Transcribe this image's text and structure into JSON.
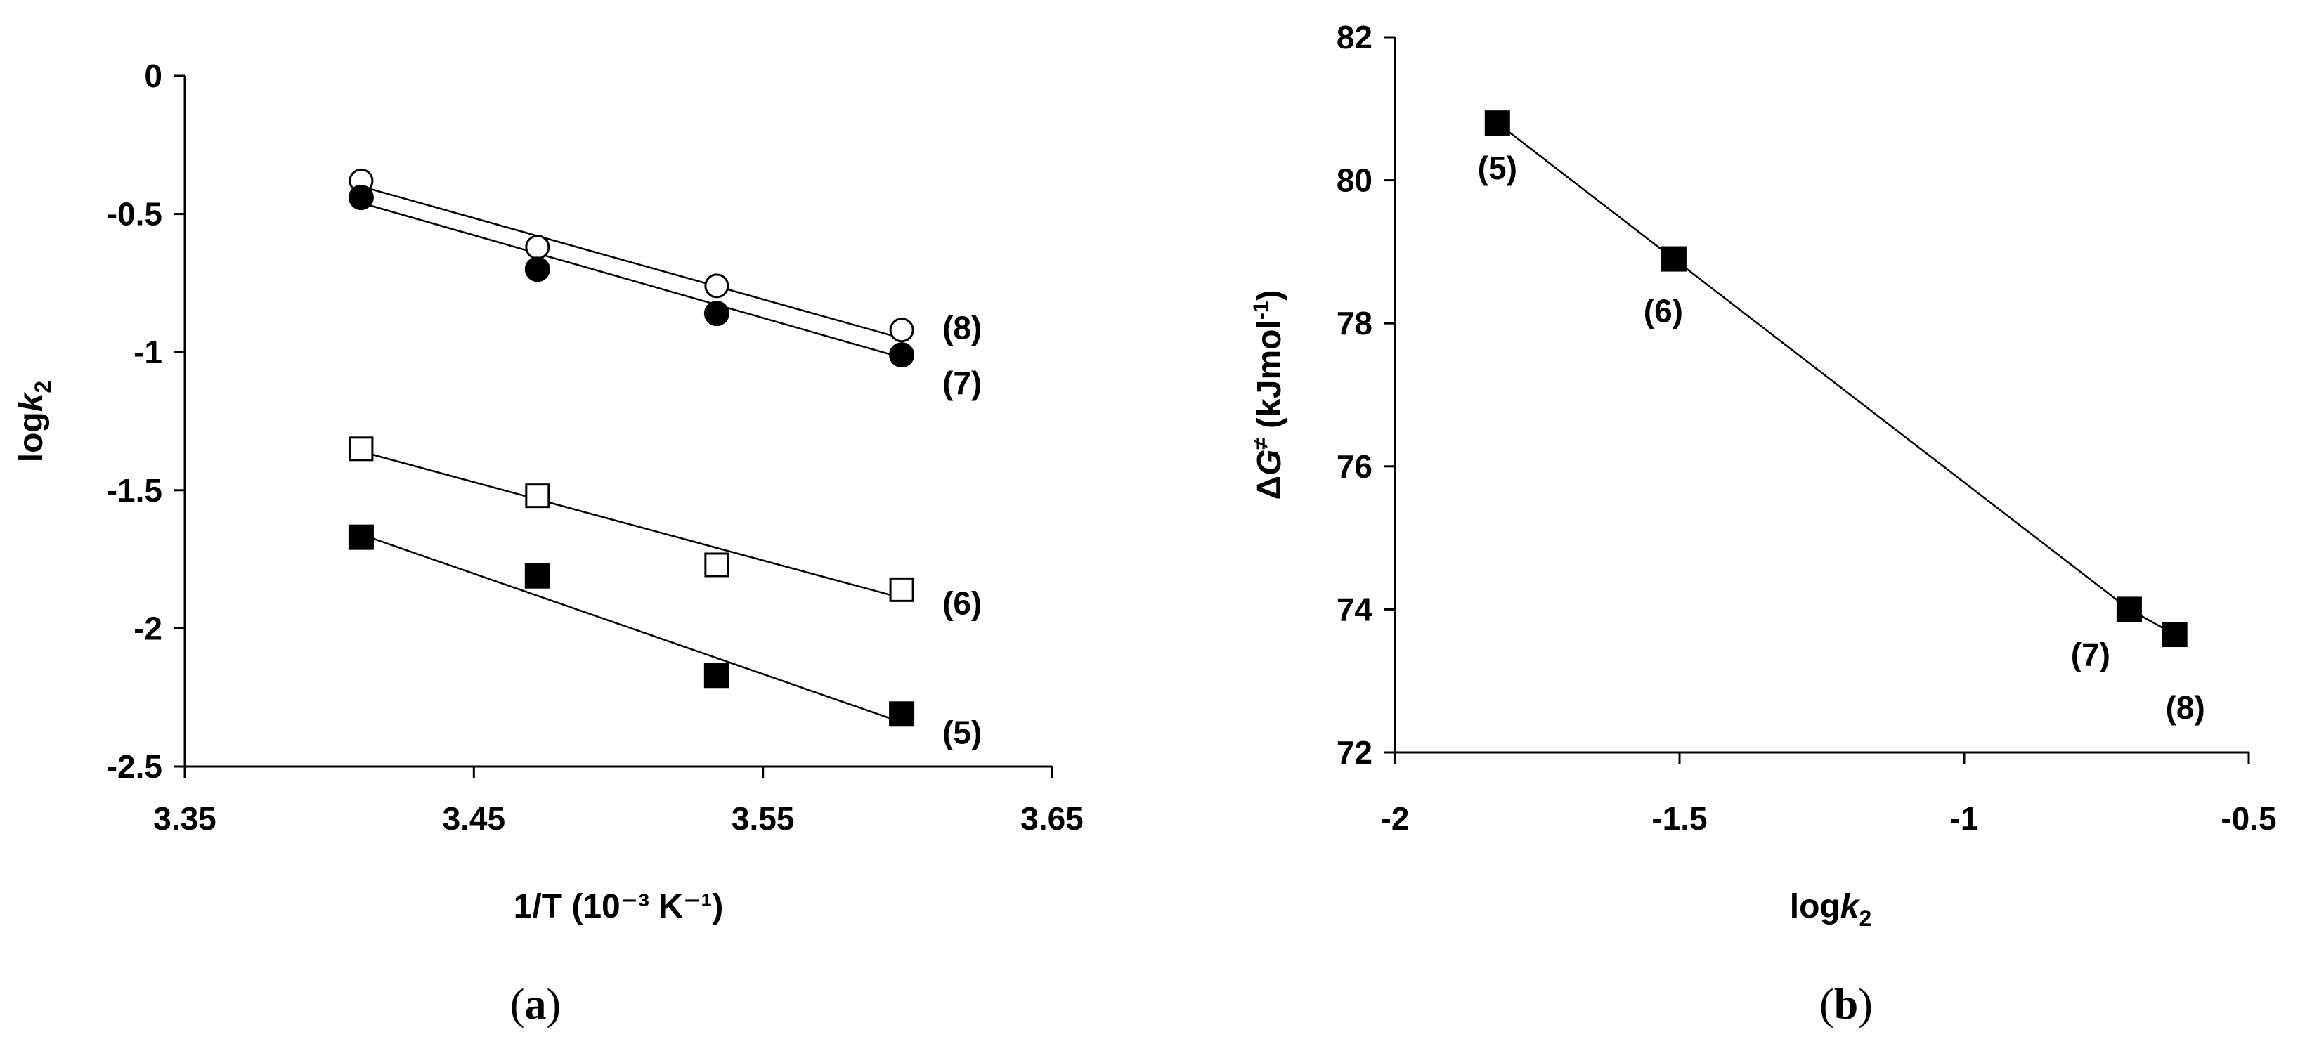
{
  "chart_data": [
    {
      "type": "scatter",
      "panel": "a",
      "caption_letter": "a",
      "xlabel": "1/T (10⁻³ K⁻¹)",
      "ylabel_main": "log",
      "ylabel_var": "k",
      "ylabel_sub": "2",
      "xlim": [
        3.35,
        3.65
      ],
      "ylim": [
        -2.5,
        0
      ],
      "xticks": [
        3.35,
        3.45,
        3.55,
        3.65
      ],
      "xtick_labels": [
        "3.35",
        "3.45",
        "3.55",
        "3.65"
      ],
      "yticks": [
        0,
        -0.5,
        -1,
        -1.5,
        -2,
        -2.5
      ],
      "ytick_labels": [
        "0",
        "-0.5",
        "-1",
        "-1.5",
        "-2",
        "-2.5"
      ],
      "grid": false,
      "series": [
        {
          "name": "(8)",
          "marker": "circle-open",
          "x": [
            3.411,
            3.472,
            3.534,
            3.598
          ],
          "y": [
            -0.38,
            -0.62,
            -0.76,
            -0.92
          ],
          "fit": {
            "x": [
              3.411,
              3.598
            ],
            "y": [
              -0.4,
              -0.95
            ]
          }
        },
        {
          "name": "(7)",
          "marker": "circle-filled",
          "x": [
            3.411,
            3.472,
            3.534,
            3.598
          ],
          "y": [
            -0.44,
            -0.7,
            -0.86,
            -1.01
          ],
          "fit": {
            "x": [
              3.411,
              3.598
            ],
            "y": [
              -0.46,
              -1.02
            ]
          }
        },
        {
          "name": "(6)",
          "marker": "square-open",
          "x": [
            3.411,
            3.472,
            3.534,
            3.598
          ],
          "y": [
            -1.35,
            -1.52,
            -1.77,
            -1.86
          ],
          "fit": {
            "x": [
              3.411,
              3.598
            ],
            "y": [
              -1.36,
              -1.89
            ]
          }
        },
        {
          "name": "(5)",
          "marker": "square-filled",
          "x": [
            3.411,
            3.472,
            3.534,
            3.598
          ],
          "y": [
            -1.67,
            -1.81,
            -2.17,
            -2.31
          ],
          "fit": {
            "x": [
              3.411,
              3.598
            ],
            "y": [
              -1.66,
              -2.34
            ]
          }
        }
      ]
    },
    {
      "type": "scatter",
      "panel": "b",
      "caption_letter": "b",
      "xlabel_main": "log",
      "xlabel_var": "k",
      "xlabel_sub": "2",
      "ylabel_main": "Δ",
      "ylabel_var": "G",
      "ylabel_sup": "≠",
      "ylabel_unit": " (kJmol",
      "ylabel_unit_sup": "-1",
      "ylabel_close": ")",
      "xlim": [
        -2,
        -0.5
      ],
      "ylim": [
        72,
        82
      ],
      "xticks": [
        -2,
        -1.5,
        -1,
        -0.5
      ],
      "xtick_labels": [
        "-2",
        "-1.5",
        "-1",
        "-0.5"
      ],
      "yticks": [
        72,
        74,
        76,
        78,
        80,
        82
      ],
      "ytick_labels": [
        "72",
        "74",
        "76",
        "78",
        "80",
        "82"
      ],
      "grid": false,
      "series": [
        {
          "name": "ΔG≠ vs logk2",
          "marker": "square-filled",
          "x": [
            -1.82,
            -1.51,
            -0.71,
            -0.63
          ],
          "y": [
            80.8,
            78.9,
            74.0,
            73.65
          ],
          "labels": [
            "(5)",
            "(6)",
            "(7)",
            "(8)"
          ]
        }
      ],
      "line_connects": true
    }
  ]
}
